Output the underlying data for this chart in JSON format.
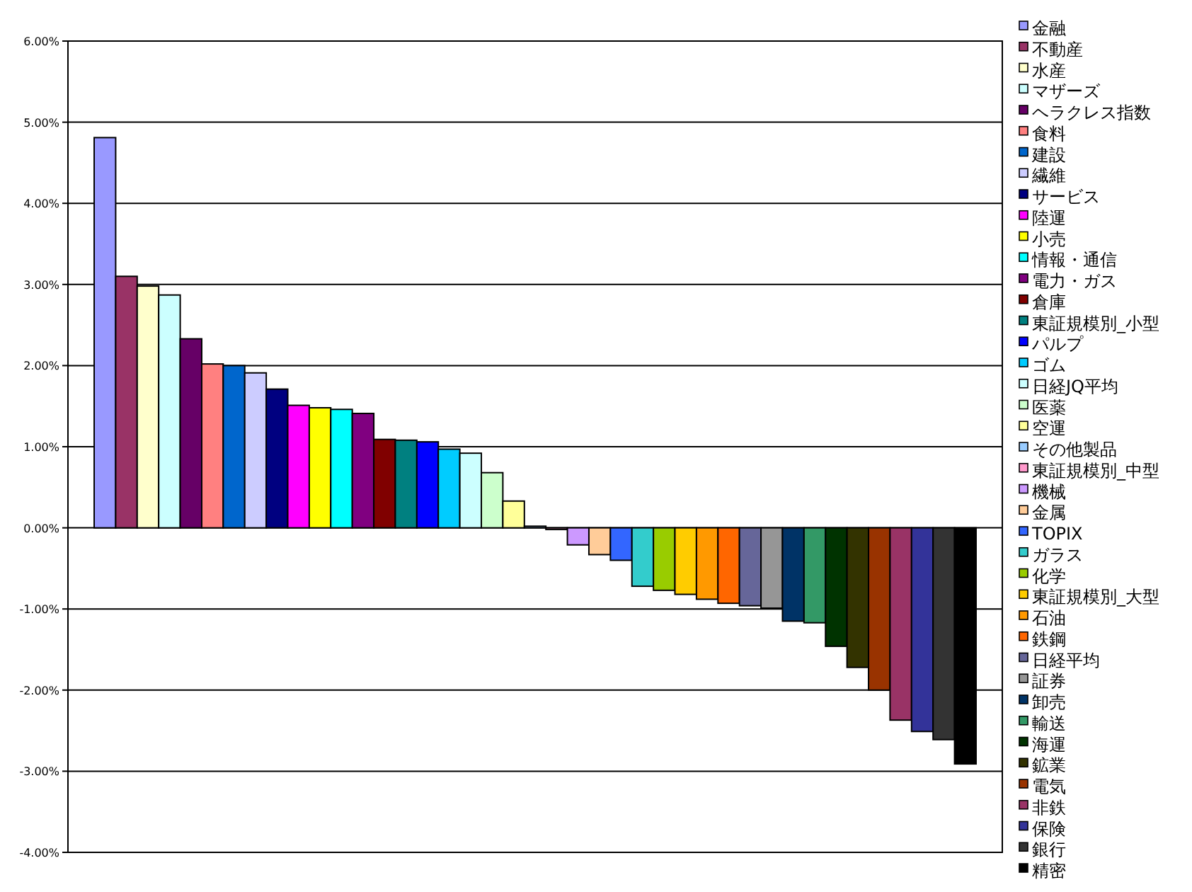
{
  "chart_data": {
    "type": "bar",
    "categories": [
      null
    ],
    "ylim": [
      -4,
      6
    ],
    "yticks": [
      {
        "value": -4,
        "label": "-4.00%"
      },
      {
        "value": -3,
        "label": "-3.00%"
      },
      {
        "value": -2,
        "label": "-2.00%"
      },
      {
        "value": -1,
        "label": "-1.00%"
      },
      {
        "value": 0,
        "label": "0.00%"
      },
      {
        "value": 1,
        "label": "1.00%"
      },
      {
        "value": 2,
        "label": "2.00%"
      },
      {
        "value": 3,
        "label": "3.00%"
      },
      {
        "value": 4,
        "label": "4.00%"
      },
      {
        "value": 5,
        "label": "5.00%"
      },
      {
        "value": 6,
        "label": "6.00%"
      }
    ],
    "grid": "y",
    "legend": "right",
    "series": [
      {
        "name": "金融",
        "color": "#9999ff",
        "values": [
          4.81
        ]
      },
      {
        "name": "不動産",
        "color": "#993366",
        "values": [
          3.1
        ]
      },
      {
        "name": "水産",
        "color": "#ffffcc",
        "values": [
          2.98
        ]
      },
      {
        "name": "マザーズ",
        "color": "#ccffff",
        "values": [
          2.87
        ]
      },
      {
        "name": "ヘラクレス指数",
        "color": "#660066",
        "values": [
          2.33
        ]
      },
      {
        "name": "食料",
        "color": "#ff8080",
        "values": [
          2.02
        ]
      },
      {
        "name": "建設",
        "color": "#0066cc",
        "values": [
          2.0
        ]
      },
      {
        "name": "繊維",
        "color": "#ccccff",
        "values": [
          1.91
        ]
      },
      {
        "name": "サービス",
        "color": "#000080",
        "values": [
          1.71
        ]
      },
      {
        "name": "陸運",
        "color": "#ff00ff",
        "values": [
          1.51
        ]
      },
      {
        "name": "小売",
        "color": "#ffff00",
        "values": [
          1.48
        ]
      },
      {
        "name": "情報・通信",
        "color": "#00ffff",
        "values": [
          1.46
        ]
      },
      {
        "name": "電力・ガス",
        "color": "#800080",
        "values": [
          1.41
        ]
      },
      {
        "name": "倉庫",
        "color": "#800000",
        "values": [
          1.09
        ]
      },
      {
        "name": "東証規模別_小型",
        "color": "#008080",
        "values": [
          1.08
        ]
      },
      {
        "name": "パルプ",
        "color": "#0000ff",
        "values": [
          1.06
        ]
      },
      {
        "name": "ゴム",
        "color": "#00ccff",
        "values": [
          0.97
        ]
      },
      {
        "name": "日経JQ平均",
        "color": "#ccffff",
        "values": [
          0.92
        ]
      },
      {
        "name": "医薬",
        "color": "#ccffcc",
        "values": [
          0.68
        ]
      },
      {
        "name": "空運",
        "color": "#ffff99",
        "values": [
          0.33
        ]
      },
      {
        "name": "その他製品",
        "color": "#99ccff",
        "values": [
          0.02
        ]
      },
      {
        "name": "東証規模別_中型",
        "color": "#ff99cc",
        "values": [
          -0.02
        ]
      },
      {
        "name": "機械",
        "color": "#cc99ff",
        "values": [
          -0.21
        ]
      },
      {
        "name": "金属",
        "color": "#ffcc99",
        "values": [
          -0.33
        ]
      },
      {
        "name": "TOPIX",
        "color": "#3366ff",
        "values": [
          -0.4
        ]
      },
      {
        "name": "ガラス",
        "color": "#33cccc",
        "values": [
          -0.72
        ]
      },
      {
        "name": "化学",
        "color": "#99cc00",
        "values": [
          -0.77
        ]
      },
      {
        "name": "東証規模別_大型",
        "color": "#ffcc00",
        "values": [
          -0.82
        ]
      },
      {
        "name": "石油",
        "color": "#ff9900",
        "values": [
          -0.88
        ]
      },
      {
        "name": "鉄鋼",
        "color": "#ff6600",
        "values": [
          -0.93
        ]
      },
      {
        "name": "日経平均",
        "color": "#666699",
        "values": [
          -0.96
        ]
      },
      {
        "name": "証券",
        "color": "#969696",
        "values": [
          -0.99
        ]
      },
      {
        "name": "卸売",
        "color": "#003366",
        "values": [
          -1.15
        ]
      },
      {
        "name": "輸送",
        "color": "#339966",
        "values": [
          -1.17
        ]
      },
      {
        "name": "海運",
        "color": "#003300",
        "values": [
          -1.46
        ]
      },
      {
        "name": "鉱業",
        "color": "#333300",
        "values": [
          -1.72
        ]
      },
      {
        "name": "電気",
        "color": "#993300",
        "values": [
          -2.0
        ]
      },
      {
        "name": "非鉄",
        "color": "#993366",
        "values": [
          -2.37
        ]
      },
      {
        "name": "保険",
        "color": "#333399",
        "values": [
          -2.51
        ]
      },
      {
        "name": "銀行",
        "color": "#333333",
        "values": [
          -2.61
        ]
      },
      {
        "name": "精密",
        "color": "#000000",
        "values": [
          -2.91
        ]
      }
    ]
  }
}
